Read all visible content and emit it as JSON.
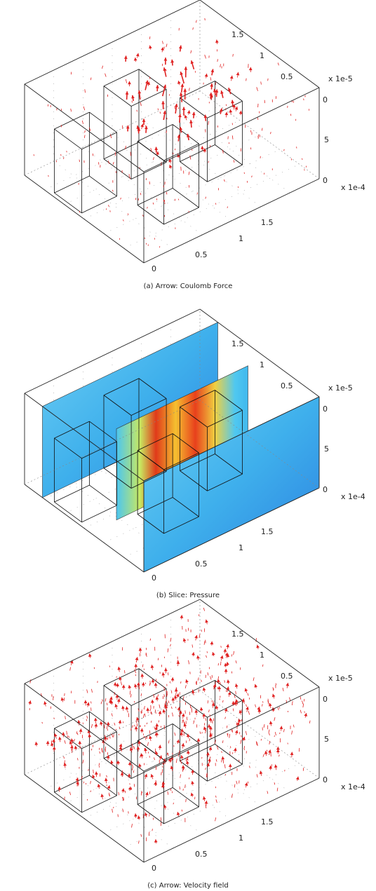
{
  "panels": [
    {
      "caption": "(a) Arrow: Coulomb Force",
      "depth_axis": {
        "ticks": [
          "1.5",
          "1",
          "0.5"
        ],
        "scale": "x 1e-5"
      },
      "vertical_axis": {
        "ticks": [
          "0",
          "5",
          "0"
        ]
      },
      "length_axis": {
        "ticks": [
          "1.5",
          "1",
          "0.5",
          "0"
        ],
        "scale": "x 1e-4"
      }
    },
    {
      "caption": "(b) Slice: Pressure",
      "depth_axis": {
        "ticks": [
          "1.5",
          "1",
          "0.5"
        ],
        "scale": "x 1e-5"
      },
      "vertical_axis": {
        "ticks": [
          "0",
          "5",
          "0"
        ]
      },
      "length_axis": {
        "ticks": [
          "1.5",
          "1",
          "0.5",
          "0"
        ],
        "scale": "x 1e-4"
      }
    },
    {
      "caption": "(c) Arrow: Velocity field",
      "depth_axis": {
        "ticks": [
          "1.5",
          "1",
          "0.5"
        ],
        "scale": "x 1e-5"
      },
      "vertical_axis": {
        "ticks": [
          "0",
          "5",
          "0"
        ]
      },
      "length_axis": {
        "ticks": [
          "1.5",
          "1",
          "0.5",
          "0"
        ],
        "scale": "x 1e-4"
      }
    }
  ]
}
